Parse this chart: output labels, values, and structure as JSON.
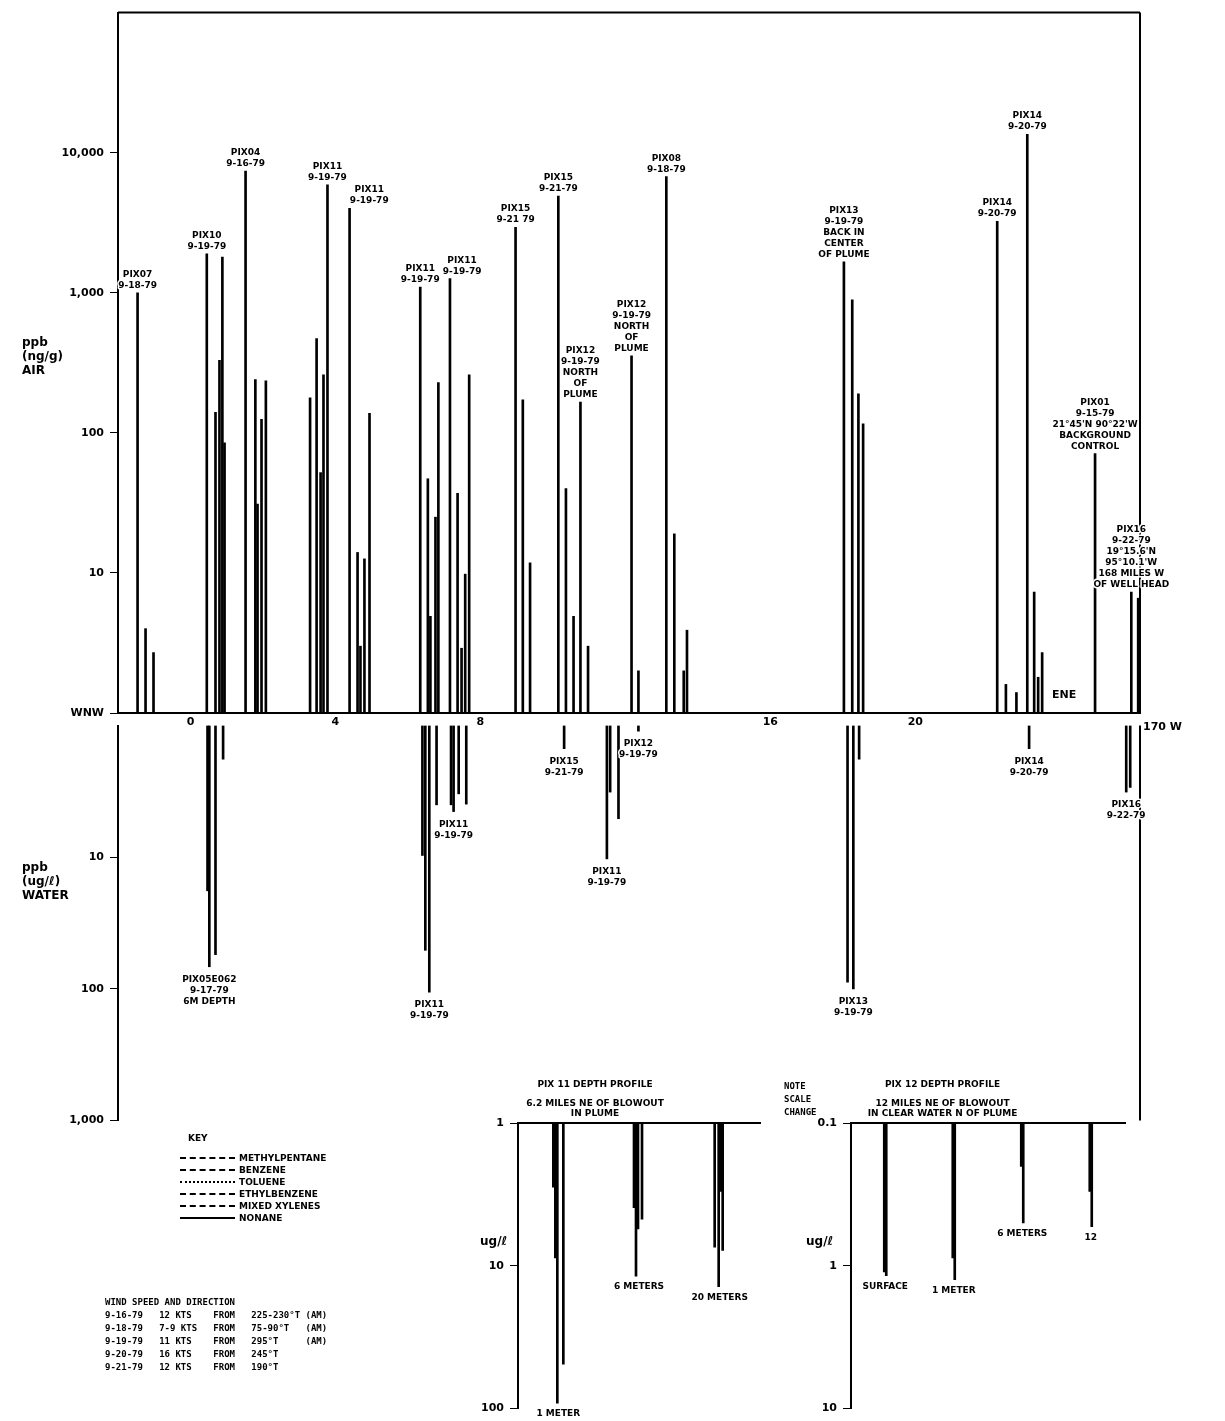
{
  "chart_data": [
    {
      "type": "bar",
      "log": true,
      "xlim": [
        -2,
        26.2
      ],
      "xticks": [
        0,
        4,
        8,
        16,
        20
      ],
      "ylim": [
        1,
        100000
      ],
      "yticks": [
        {
          "value": 1,
          "label": "WNW"
        },
        10,
        100,
        {
          "value": 1000,
          "label": "1,000"
        },
        {
          "value": 10000,
          "label": "10,000"
        }
      ],
      "ylabel": "ppb\n(ng/g)\nAIR",
      "color": "#000000",
      "x": [
        -1.46,
        -1.24,
        -1.02,
        0.45,
        0.69,
        0.8,
        0.88,
        0.94,
        1.52,
        1.79,
        1.85,
        1.96,
        2.08,
        3.3,
        3.48,
        3.59,
        3.67,
        3.78,
        4.39,
        4.61,
        4.69,
        4.8,
        4.94,
        6.34,
        6.55,
        6.62,
        6.76,
        6.84,
        7.16,
        7.37,
        7.48,
        7.58,
        7.69,
        8.97,
        9.17,
        9.37,
        10.15,
        10.36,
        10.57,
        10.76,
        10.97,
        12.17,
        12.36,
        13.13,
        13.35,
        13.61,
        13.7,
        18.03,
        18.26,
        18.43,
        18.56,
        22.26,
        22.5,
        22.79,
        23.09,
        23.28,
        23.39,
        23.5,
        24.96,
        25.96,
        26.15
      ],
      "values": [
        1000,
        4,
        2.7,
        1900,
        140,
        330,
        1800,
        85,
        7400,
        240,
        31,
        125,
        235,
        178,
        470,
        52,
        260,
        5900,
        4000,
        14,
        3,
        12.6,
        138,
        1100,
        47,
        4.9,
        25,
        228,
        1260,
        37,
        2.9,
        9.8,
        260,
        2930,
        172,
        11.8,
        4900,
        40,
        4.9,
        166,
        3,
        355,
        2,
        6760,
        19,
        2,
        3.9,
        1660,
        890,
        190,
        116,
        3240,
        1.6,
        1.4,
        13500,
        7.3,
        1.8,
        2.7,
        71,
        7.3,
        6.6
      ],
      "annotations": [
        {
          "text": "PIX07\n9-18-79",
          "x": -1.46,
          "y": 1000
        },
        {
          "text": "PIX10\n9-19-79",
          "x": 0.45,
          "y": 1900
        },
        {
          "text": "PIX04\n9-16-79",
          "x": 1.52,
          "y": 7400
        },
        {
          "text": "PIX11\n9-19-79",
          "x": 3.78,
          "y": 5900
        },
        {
          "text": "PIX11\n9-19-79",
          "x": 4.39,
          "y": 4000
        },
        {
          "text": "PIX11\n9-19-79",
          "x": 6.34,
          "y": 1100
        },
        {
          "text": "PIX11\n9-19-79",
          "x": 7.16,
          "y": 1260
        },
        {
          "text": "PIX15\n9-21 79",
          "x": 8.97,
          "y": 2930
        },
        {
          "text": "PIX15\n9-21-79",
          "x": 10.15,
          "y": 4900
        },
        {
          "text": "PIX12\n9-19-79\nNORTH\nOF\nPLUME",
          "x": 10.76,
          "y": 166
        },
        {
          "text": "PIX12\n9-19-79\nNORTH\nOF\nPLUME",
          "x": 12.17,
          "y": 355
        },
        {
          "text": "PIX08\n9-18-79",
          "x": 13.13,
          "y": 6760
        },
        {
          "text": "PIX13\n9-19-79\nBACK IN\nCENTER\nOF PLUME",
          "x": 18.03,
          "y": 1660
        },
        {
          "text": "PIX14\n9-20-79",
          "x": 22.26,
          "y": 3240
        },
        {
          "text": "PIX14\n9-20-79",
          "x": 23.09,
          "y": 13500
        },
        {
          "text": "PIX01\n9-15-79\n21°45'N 90°22'W\nBACKGROUND\nCONTROL",
          "x": 24.96,
          "y": 71
        },
        {
          "text": "PIX16\n9-22-79\n19°15.6'N\n95°10.1'W\n168 MILES W\nOF WELL HEAD",
          "x": 25.96,
          "y": 7.3
        },
        "ENE",
        "170 W"
      ]
    },
    {
      "type": "bar",
      "log": true,
      "tick_labels": "y",
      "xlim": [
        -2,
        26.2
      ],
      "ylim": [
        1000,
        1
      ],
      "yticks": [
        10,
        100,
        {
          "value": 1000,
          "label": "1,000"
        }
      ],
      "ylabel": "ppb\n(ug/ℓ)\nWATER",
      "color": "#000000",
      "x": [
        0.47,
        0.52,
        0.69,
        0.9,
        6.4,
        6.48,
        6.59,
        6.79,
        7.19,
        7.26,
        7.4,
        7.61,
        10.31,
        11.49,
        11.58,
        11.81,
        12.36,
        18.13,
        18.29,
        18.45,
        23.14,
        25.82,
        25.93
      ],
      "values": [
        18,
        68,
        55,
        1.8,
        9.7,
        51,
        106,
        4,
        4,
        4.5,
        3.3,
        3.95,
        1.5,
        10.3,
        3.2,
        5.1,
        1.1,
        89,
        100,
        1.8,
        1.5,
        3.2,
        2.95
      ],
      "annotations": [
        {
          "text": "PIX05E062\n9-17-79\n6M DEPTH",
          "x": 0.52,
          "y": 68
        },
        {
          "text": "PIX11\n9-19-79",
          "x": 6.59,
          "y": 106
        },
        {
          "text": "PIX11\n9-19-79",
          "x": 7.26,
          "y": 4.5
        },
        {
          "text": "PIX15\n9-21-79",
          "x": 10.31,
          "y": 1.5
        },
        {
          "text": "PIX11\n9-19-79",
          "x": 11.49,
          "y": 10.3
        },
        {
          "text": "PIX12\n9-19-79",
          "x": 12.36,
          "y": 1.1
        },
        {
          "text": "PIX13\n9-19-79",
          "x": 18.29,
          "y": 100
        },
        {
          "text": "PIX14\n9-20-79",
          "x": 23.14,
          "y": 1.5
        },
        {
          "text": "PIX16\n9-22-79",
          "x": 25.82,
          "y": 3.2
        },
        "WIND SPEED AND DIRECTION",
        "9-16-79   12 KTS    FROM   225-230°T (AM)",
        "9-18-79   7-9 KTS   FROM   75-90°T   (AM)",
        "9-19-79   11 KTS    FROM   295°T     (AM)",
        "9-20-79   16 KTS    FROM   245°T",
        "9-21-79   12 KTS    FROM   190°T"
      ]
    },
    {
      "type": "bar",
      "log": true,
      "tick_labels": "y",
      "title": "PIX 11 DEPTH PROFILE",
      "subtitle": "6.2 MILES NE OF BLOWOUT\nIN PLUME",
      "ylabel": "ug/ℓ",
      "ylim": [
        100,
        1
      ],
      "yticks": [
        1,
        10,
        100
      ],
      "categories": [
        "1 METER",
        "6 METERS",
        "20 METERS"
      ],
      "series": [
        {
          "color": "#000000",
          "values": [
            2.8,
            3.9,
            7.4
          ]
        },
        {
          "color": "#000000",
          "values": [
            8.8,
            11.8,
            null
          ]
        },
        {
          "color": "#000000",
          "values": [
            92,
            5.5,
            14
          ]
        },
        {
          "color": "#000000",
          "values": [
            null,
            null,
            3
          ]
        },
        {
          "color": "#000000",
          "values": [
            null,
            4.7,
            7.8
          ]
        },
        {
          "color": "#000000",
          "values": [
            49,
            null,
            null
          ]
        }
      ]
    },
    {
      "type": "bar",
      "log": true,
      "tick_labels": "y",
      "title": "PIX 12 DEPTH PROFILE",
      "subtitle": "12 MILES NE OF BLOWOUT\nIN CLEAR WATER N OF PLUME",
      "ylabel": "ug/ℓ",
      "ylim": [
        10,
        0.1
      ],
      "yticks": [
        0.1,
        1,
        10
      ],
      "categories": [
        "SURFACE",
        "1 METER",
        "6 METERS",
        "12"
      ],
      "series": [
        {
          "color": "#000000",
          "values": [
            1.1,
            0.88,
            0.2,
            0.3
          ]
        },
        {
          "color": "#000000",
          "values": [
            1.17,
            1.25,
            0.5,
            0.53
          ]
        }
      ],
      "annotations": [
        "NOTE\nSCALE\nCHANGE"
      ]
    },
    {
      "type": "other",
      "annotations": [
        "KEY",
        "METHYLPENTANE",
        "BENZENE",
        "TOLUENE",
        "ETHYLBENZENE",
        "MIXED XYLENES",
        "NONANE"
      ]
    }
  ]
}
